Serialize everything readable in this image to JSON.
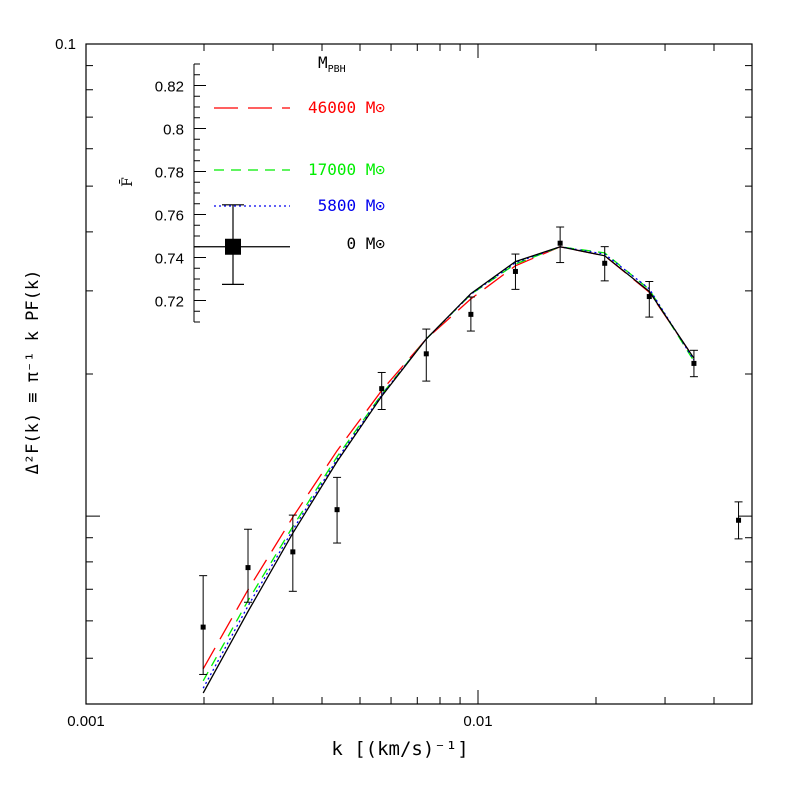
{
  "chart_data": [
    {
      "type": "line",
      "xlabel": "k [(km/s)⁻¹]",
      "ylabel": "Δ²F(k) ≡ π⁻¹ k PF(k)",
      "xscale": "log",
      "yscale": "log",
      "xlim": [
        0.001,
        0.05
      ],
      "ylim": [
        0.004,
        0.1
      ],
      "x_tick_labels": [
        {
          "value": 0.001,
          "label": "0.001"
        },
        {
          "value": 0.01,
          "label": "0.01"
        }
      ],
      "y_tick_labels": [
        {
          "value": 0.1,
          "label": "0.1"
        }
      ],
      "legend_title": "M",
      "legend_title_sub": "PBH",
      "legend_placement": "top-left",
      "series": [
        {
          "name": "46000 M⊙",
          "color": "#ff0000",
          "style": "long-dash",
          "x": [
            0.00199,
            0.00259,
            0.00337,
            0.00437,
            0.00568,
            0.00738,
            0.00959,
            0.01246,
            0.0162,
            0.02105,
            0.02735,
            0.03555
          ],
          "y": [
            0.00475,
            0.00698,
            0.00995,
            0.01376,
            0.01845,
            0.02373,
            0.02885,
            0.0339,
            0.0372,
            0.0356,
            0.0298,
            0.0216
          ]
        },
        {
          "name": "17000 M⊙",
          "color": "#00ee00",
          "style": "dash",
          "x": [
            0.00199,
            0.00259,
            0.00337,
            0.00437,
            0.00568,
            0.00738,
            0.00959,
            0.01246,
            0.0162,
            0.02105,
            0.02735,
            0.03555
          ],
          "y": [
            0.00448,
            0.00662,
            0.0095,
            0.01336,
            0.0181,
            0.02373,
            0.0295,
            0.0342,
            0.0372,
            0.0361,
            0.0302,
            0.0213
          ]
        },
        {
          "name": "5800 M⊙",
          "color": "#0000ee",
          "style": "dotted",
          "x": [
            0.00199,
            0.00259,
            0.00337,
            0.00437,
            0.00568,
            0.00738,
            0.00959,
            0.01246,
            0.0162,
            0.02105,
            0.02735,
            0.03555
          ],
          "y": [
            0.00432,
            0.00645,
            0.00935,
            0.0132,
            0.01805,
            0.02373,
            0.0295,
            0.0344,
            0.0372,
            0.0359,
            0.0303,
            0.0214
          ]
        },
        {
          "name": "0 M⊙",
          "color": "#000000",
          "style": "solid",
          "x": [
            0.00199,
            0.00259,
            0.00337,
            0.00437,
            0.00568,
            0.00738,
            0.00959,
            0.01246,
            0.0162,
            0.02105,
            0.02735,
            0.03555
          ],
          "y": [
            0.00422,
            0.00628,
            0.0092,
            0.01305,
            0.01795,
            0.02373,
            0.0296,
            0.0346,
            0.0372,
            0.0356,
            0.0299,
            0.0216
          ]
        }
      ],
      "points": {
        "name": "data",
        "color": "#000000",
        "x": [
          0.00199,
          0.00259,
          0.00337,
          0.00437,
          0.00568,
          0.00738,
          0.00959,
          0.01246,
          0.0162,
          0.02105,
          0.02735,
          0.03555,
          0.0462
        ],
        "y": [
          0.00582,
          0.00778,
          0.0084,
          0.01032,
          0.01862,
          0.02207,
          0.02675,
          0.03298,
          0.03785,
          0.03432,
          0.02918,
          0.02106,
          0.0098
        ],
        "yerr_low": [
          0.00462,
          0.00657,
          0.00693,
          0.00877,
          0.01682,
          0.01932,
          0.02466,
          0.03022,
          0.03444,
          0.0315,
          0.0264,
          0.01974,
          0.00895
        ],
        "yerr_high": [
          0.00748,
          0.00938,
          0.01005,
          0.01208,
          0.02015,
          0.0249,
          0.02912,
          0.0359,
          0.04096,
          0.03722,
          0.0314,
          0.02245,
          0.01072
        ]
      }
    },
    {
      "type": "scatter",
      "ylabel": "F̄",
      "ylim": [
        0.71,
        0.83
      ],
      "y_ticks": [
        0.72,
        0.74,
        0.76,
        0.78,
        0.8,
        0.82
      ],
      "y_tick_labels": [
        "0.72",
        "0.74",
        "0.76",
        "0.78",
        "0.8",
        "0.82"
      ],
      "points": [
        {
          "y": 0.745,
          "yerr": [
            0.7275,
            0.7645
          ]
        }
      ]
    }
  ]
}
